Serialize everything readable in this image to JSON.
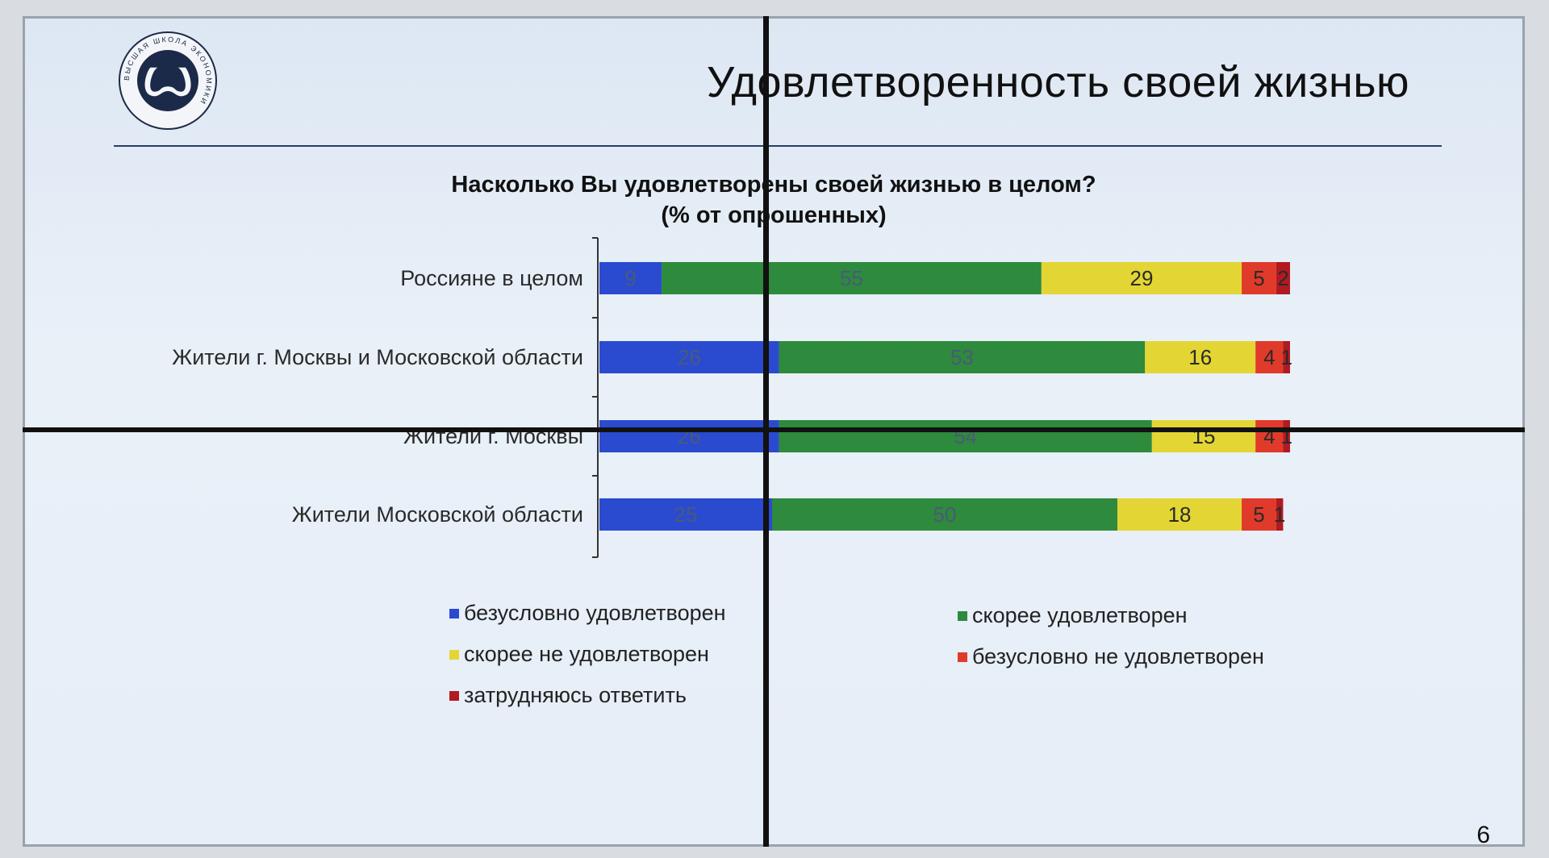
{
  "slide": {
    "title": "Удовлетворенность своей жизнью",
    "page_number": "6",
    "logo_text": "ВЫСШАЯ ШКОЛА ЭКОНОМИКИ"
  },
  "chart_data": {
    "type": "bar",
    "orientation": "horizontal",
    "stacked": true,
    "title": "Насколько Вы удовлетворены своей жизнью в целом?",
    "subtitle": "(% от опрошенных)",
    "categories": [
      "Россияне в целом",
      "Жители г. Москвы и Московской области",
      "Жители г. Москвы",
      "Жители Московской области"
    ],
    "series": [
      {
        "name": "безусловно удовлетворен",
        "color": "#2a4bd0",
        "values": [
          9,
          26,
          26,
          25
        ]
      },
      {
        "name": "скорее удовлетворен",
        "color": "#2e8a3c",
        "values": [
          55,
          53,
          54,
          50
        ]
      },
      {
        "name": "скорее не удовлетворен",
        "color": "#e3d634",
        "values": [
          29,
          16,
          15,
          18
        ]
      },
      {
        "name": "безусловно не удовлетворен",
        "color": "#e03a2a",
        "values": [
          5,
          4,
          4,
          5
        ]
      },
      {
        "name": "затрудняюсь ответить",
        "color": "#b01a20",
        "values": [
          2,
          1,
          1,
          1
        ]
      }
    ],
    "xlim": [
      0,
      100
    ],
    "legend": "bottom",
    "grid": false
  }
}
